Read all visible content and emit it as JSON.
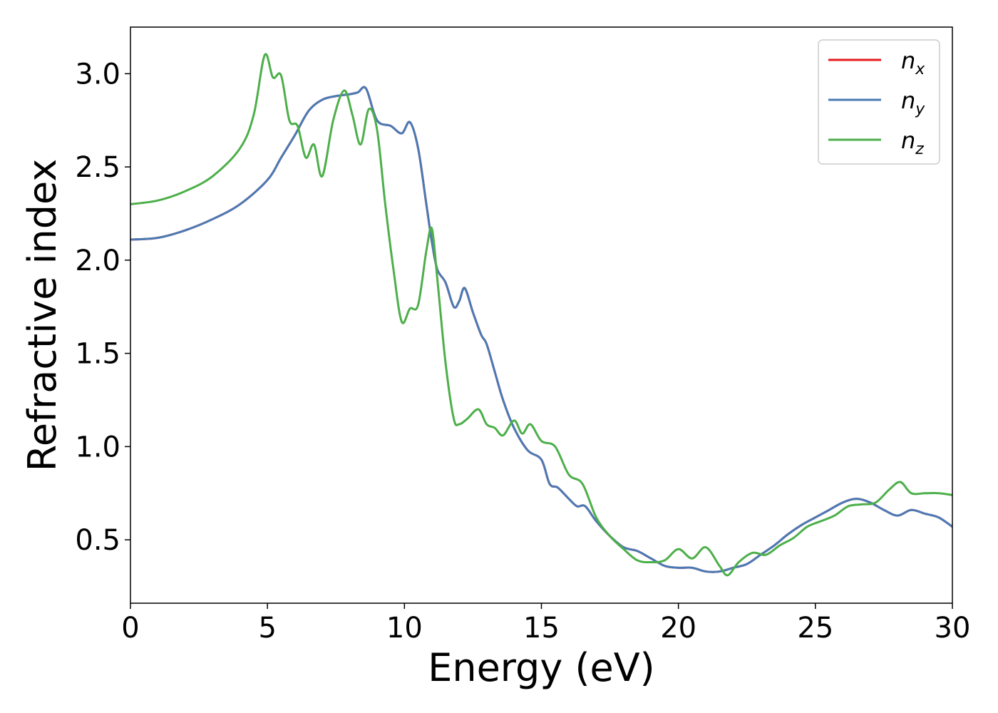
{
  "chart_data": {
    "type": "line",
    "title": "",
    "xlabel": "Energy (eV)",
    "ylabel": "Refractive index",
    "xlim": [
      0,
      30
    ],
    "ylim": [
      0.16,
      3.25
    ],
    "xticks": [
      0,
      5,
      10,
      15,
      20,
      25,
      30
    ],
    "xtick_labels": [
      "0",
      "5",
      "10",
      "15",
      "20",
      "25",
      "30"
    ],
    "yticks": [
      0.5,
      1.0,
      1.5,
      2.0,
      2.5,
      3.0
    ],
    "ytick_labels": [
      "0.5",
      "1.0",
      "1.5",
      "2.0",
      "2.5",
      "3.0"
    ],
    "grid": false,
    "legend_position": "top-right",
    "series": [
      {
        "name": "n",
        "sub": "x",
        "color": "#e41a1c",
        "x": [
          0,
          1,
          2,
          3,
          4,
          5,
          5.5,
          6,
          6.5,
          7,
          7.5,
          8,
          8.3,
          8.6,
          9,
          9.5,
          9.9,
          10.2,
          10.5,
          10.8,
          11,
          11.2,
          11.5,
          11.8,
          12,
          12.2,
          12.5,
          12.8,
          13,
          13.3,
          13.6,
          14,
          14.5,
          15,
          15.3,
          15.6,
          16,
          16.3,
          16.6,
          17,
          17.5,
          18,
          18.5,
          19,
          19.5,
          20,
          20.5,
          21,
          21.5,
          22,
          22.5,
          23,
          23.5,
          24,
          24.5,
          25,
          25.5,
          26,
          26.5,
          27,
          27.5,
          28,
          28.5,
          29,
          29.5,
          30
        ],
        "y": [
          2.11,
          2.12,
          2.16,
          2.22,
          2.3,
          2.43,
          2.55,
          2.67,
          2.8,
          2.86,
          2.88,
          2.89,
          2.9,
          2.92,
          2.75,
          2.72,
          2.68,
          2.74,
          2.6,
          2.3,
          2.1,
          1.95,
          1.88,
          1.75,
          1.78,
          1.85,
          1.72,
          1.6,
          1.55,
          1.4,
          1.25,
          1.1,
          0.98,
          0.93,
          0.8,
          0.78,
          0.72,
          0.68,
          0.68,
          0.6,
          0.52,
          0.46,
          0.44,
          0.4,
          0.36,
          0.35,
          0.35,
          0.33,
          0.33,
          0.35,
          0.37,
          0.42,
          0.47,
          0.53,
          0.58,
          0.62,
          0.66,
          0.7,
          0.72,
          0.7,
          0.66,
          0.63,
          0.66,
          0.64,
          0.62,
          0.57
        ]
      },
      {
        "name": "n",
        "sub": "y",
        "color": "#4a7ab5",
        "x": [
          0,
          1,
          2,
          3,
          4,
          5,
          5.5,
          6,
          6.5,
          7,
          7.5,
          8,
          8.3,
          8.6,
          9,
          9.5,
          9.9,
          10.2,
          10.5,
          10.8,
          11,
          11.2,
          11.5,
          11.8,
          12,
          12.2,
          12.5,
          12.8,
          13,
          13.3,
          13.6,
          14,
          14.5,
          15,
          15.3,
          15.6,
          16,
          16.3,
          16.6,
          17,
          17.5,
          18,
          18.5,
          19,
          19.5,
          20,
          20.5,
          21,
          21.5,
          22,
          22.5,
          23,
          23.5,
          24,
          24.5,
          25,
          25.5,
          26,
          26.5,
          27,
          27.5,
          28,
          28.5,
          29,
          29.5,
          30
        ],
        "y": [
          2.11,
          2.12,
          2.16,
          2.22,
          2.3,
          2.43,
          2.55,
          2.67,
          2.8,
          2.86,
          2.88,
          2.89,
          2.9,
          2.92,
          2.75,
          2.72,
          2.68,
          2.74,
          2.6,
          2.3,
          2.1,
          1.95,
          1.88,
          1.75,
          1.78,
          1.85,
          1.72,
          1.6,
          1.55,
          1.4,
          1.25,
          1.1,
          0.98,
          0.93,
          0.8,
          0.78,
          0.72,
          0.68,
          0.68,
          0.6,
          0.52,
          0.46,
          0.44,
          0.4,
          0.36,
          0.35,
          0.35,
          0.33,
          0.33,
          0.35,
          0.37,
          0.42,
          0.47,
          0.53,
          0.58,
          0.62,
          0.66,
          0.7,
          0.72,
          0.7,
          0.66,
          0.63,
          0.66,
          0.64,
          0.62,
          0.57
        ]
      },
      {
        "name": "n",
        "sub": "z",
        "color": "#4daf4a",
        "x": [
          0,
          1,
          2,
          3,
          4,
          4.5,
          4.9,
          5.2,
          5.5,
          5.8,
          6.1,
          6.4,
          6.7,
          7,
          7.4,
          7.8,
          8.1,
          8.4,
          8.7,
          9,
          9.3,
          9.6,
          9.9,
          10.2,
          10.5,
          10.8,
          11,
          11.2,
          11.5,
          11.8,
          12,
          12.3,
          12.7,
          13,
          13.3,
          13.6,
          14,
          14.3,
          14.6,
          15,
          15.5,
          16,
          16.5,
          17,
          17.5,
          18,
          18.5,
          19,
          19.5,
          20,
          20.5,
          21,
          21.5,
          21.8,
          22.2,
          22.7,
          23.2,
          23.7,
          24.2,
          24.7,
          25.2,
          25.7,
          26.2,
          26.7,
          27.2,
          27.7,
          28.1,
          28.5,
          29,
          29.5,
          30
        ],
        "y": [
          2.3,
          2.32,
          2.37,
          2.45,
          2.6,
          2.78,
          3.1,
          2.98,
          2.99,
          2.75,
          2.72,
          2.55,
          2.62,
          2.45,
          2.75,
          2.91,
          2.78,
          2.62,
          2.81,
          2.7,
          2.3,
          1.95,
          1.67,
          1.74,
          1.76,
          2.05,
          2.17,
          1.9,
          1.45,
          1.15,
          1.12,
          1.15,
          1.2,
          1.12,
          1.1,
          1.06,
          1.14,
          1.07,
          1.12,
          1.03,
          1.0,
          0.85,
          0.8,
          0.62,
          0.52,
          0.45,
          0.39,
          0.38,
          0.39,
          0.45,
          0.4,
          0.46,
          0.36,
          0.31,
          0.38,
          0.43,
          0.42,
          0.47,
          0.51,
          0.57,
          0.6,
          0.63,
          0.68,
          0.69,
          0.7,
          0.77,
          0.81,
          0.75,
          0.75,
          0.75,
          0.74
        ]
      }
    ]
  }
}
